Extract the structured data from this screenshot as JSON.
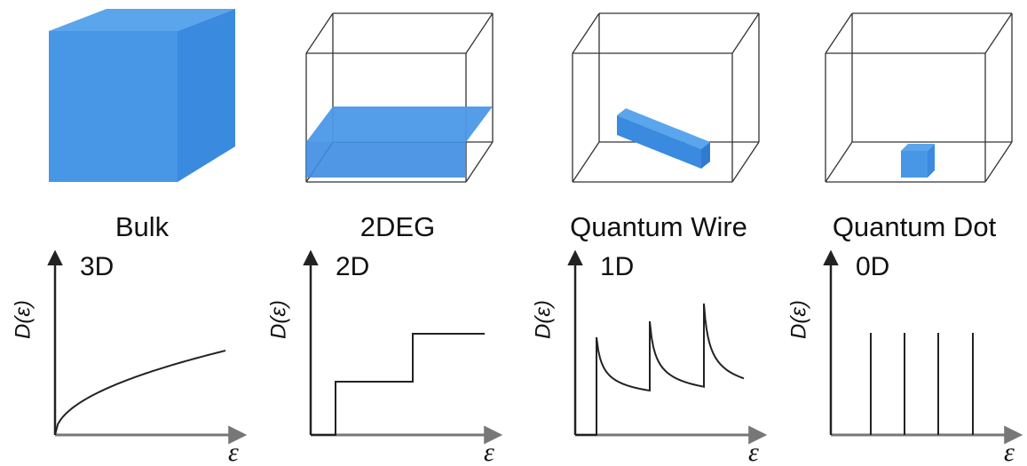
{
  "panels": [
    {
      "name": "Bulk",
      "dimension": "3D",
      "y_label": "D(ε)",
      "x_label": "ε"
    },
    {
      "name": "2DEG",
      "dimension": "2D",
      "y_label": "D(ε)",
      "x_label": "ε"
    },
    {
      "name": "Quantum Wire",
      "dimension": "1D",
      "y_label": "D(ε)",
      "x_label": "ε"
    },
    {
      "name": "Quantum Dot",
      "dimension": "0D",
      "y_label": "D(ε)",
      "x_label": "ε"
    }
  ]
}
